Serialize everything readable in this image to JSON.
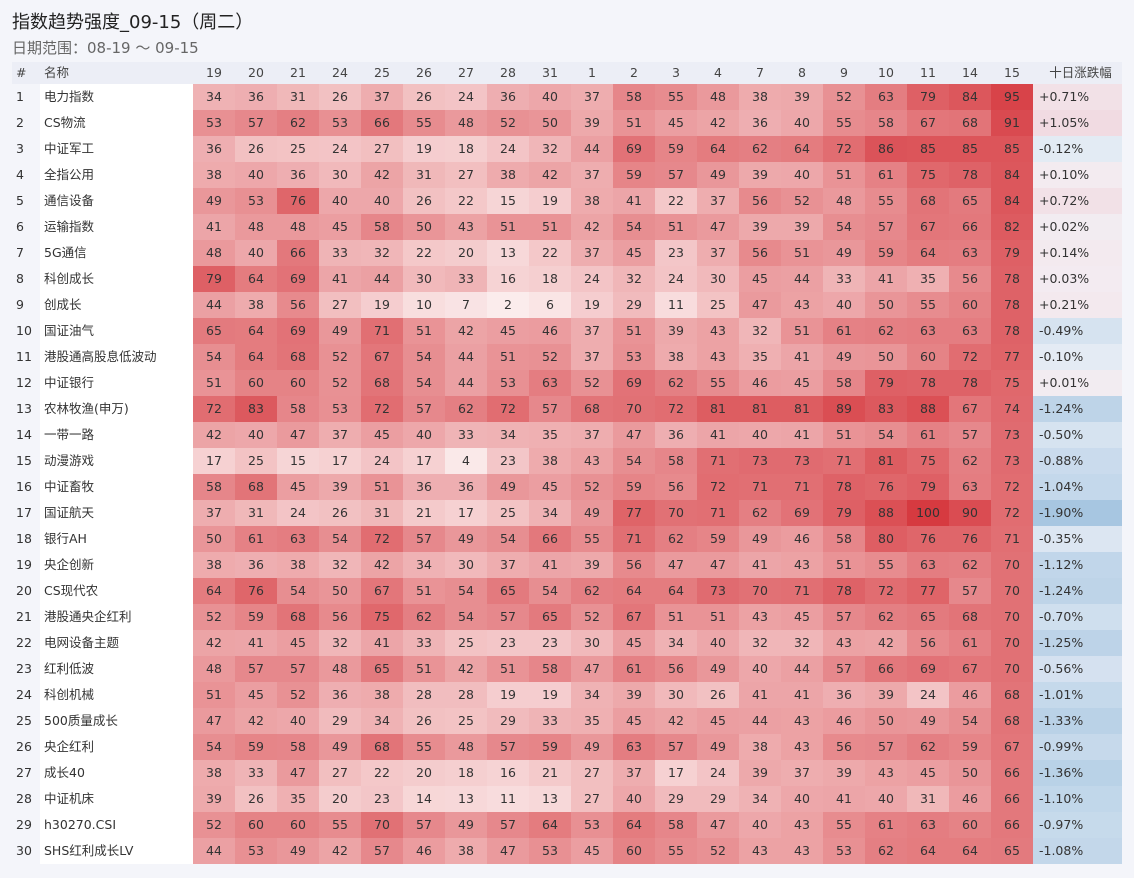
{
  "header": {
    "title": "指数趋势强度_09-15（周二）",
    "date_range": "日期范围：08-19 ～ 09-15"
  },
  "table": {
    "columns": [
      "#",
      "名称",
      "19",
      "20",
      "21",
      "24",
      "25",
      "26",
      "27",
      "28",
      "31",
      "1",
      "2",
      "3",
      "4",
      "7",
      "8",
      "9",
      "10",
      "11",
      "14",
      "15",
      "十日涨跌幅"
    ],
    "rows": [
      [
        1,
        "电力指数",
        34,
        36,
        31,
        26,
        37,
        26,
        24,
        36,
        40,
        37,
        58,
        55,
        48,
        38,
        39,
        52,
        63,
        79,
        84,
        95,
        "+0.71%"
      ],
      [
        2,
        "CS物流",
        53,
        57,
        62,
        53,
        66,
        55,
        48,
        52,
        50,
        39,
        51,
        45,
        42,
        36,
        40,
        55,
        58,
        67,
        68,
        91,
        "+1.05%"
      ],
      [
        3,
        "中证军工",
        36,
        26,
        25,
        24,
        27,
        19,
        18,
        24,
        32,
        44,
        69,
        59,
        64,
        62,
        64,
        72,
        86,
        85,
        85,
        85,
        "-0.12%"
      ],
      [
        4,
        "全指公用",
        38,
        40,
        36,
        30,
        42,
        31,
        27,
        38,
        42,
        37,
        59,
        57,
        49,
        39,
        40,
        51,
        61,
        75,
        78,
        84,
        "+0.10%"
      ],
      [
        5,
        "通信设备",
        49,
        53,
        76,
        40,
        40,
        26,
        22,
        15,
        19,
        38,
        41,
        22,
        37,
        56,
        52,
        48,
        55,
        68,
        65,
        84,
        "+0.72%"
      ],
      [
        6,
        "运输指数",
        41,
        48,
        48,
        45,
        58,
        50,
        43,
        51,
        51,
        42,
        54,
        51,
        47,
        39,
        39,
        54,
        57,
        67,
        66,
        82,
        "+0.02%"
      ],
      [
        7,
        "5G通信",
        48,
        40,
        66,
        33,
        32,
        22,
        20,
        13,
        22,
        37,
        45,
        23,
        37,
        56,
        51,
        49,
        59,
        64,
        63,
        79,
        "+0.14%"
      ],
      [
        8,
        "科创成长",
        79,
        64,
        69,
        41,
        44,
        30,
        33,
        16,
        18,
        24,
        32,
        24,
        30,
        45,
        44,
        33,
        41,
        35,
        56,
        78,
        "+0.03%"
      ],
      [
        9,
        "创成长",
        44,
        38,
        56,
        27,
        19,
        10,
        7,
        2,
        6,
        19,
        29,
        11,
        25,
        47,
        43,
        40,
        50,
        55,
        60,
        78,
        "+0.21%"
      ],
      [
        10,
        "国证油气",
        65,
        64,
        69,
        49,
        71,
        51,
        42,
        45,
        46,
        37,
        51,
        39,
        43,
        32,
        51,
        61,
        62,
        63,
        63,
        78,
        "-0.49%"
      ],
      [
        11,
        "港股通高股息低波动",
        54,
        64,
        68,
        52,
        67,
        54,
        44,
        51,
        52,
        37,
        53,
        38,
        43,
        35,
        41,
        49,
        50,
        60,
        72,
        77,
        "-0.10%"
      ],
      [
        12,
        "中证银行",
        51,
        60,
        60,
        52,
        68,
        54,
        44,
        53,
        63,
        52,
        69,
        62,
        55,
        46,
        45,
        58,
        79,
        78,
        78,
        75,
        "+0.01%"
      ],
      [
        13,
        "农林牧渔(申万)",
        72,
        83,
        58,
        53,
        72,
        57,
        62,
        72,
        57,
        68,
        70,
        72,
        81,
        81,
        81,
        89,
        83,
        88,
        67,
        74,
        "-1.24%"
      ],
      [
        14,
        "一带一路",
        42,
        40,
        47,
        37,
        45,
        40,
        33,
        34,
        35,
        37,
        47,
        36,
        41,
        40,
        41,
        51,
        54,
        61,
        57,
        73,
        "-0.50%"
      ],
      [
        15,
        "动漫游戏",
        17,
        25,
        15,
        17,
        24,
        17,
        4,
        23,
        38,
        43,
        54,
        58,
        71,
        73,
        73,
        71,
        81,
        75,
        62,
        73,
        "-0.88%"
      ],
      [
        16,
        "中证畜牧",
        58,
        68,
        45,
        39,
        51,
        36,
        36,
        49,
        45,
        52,
        59,
        56,
        72,
        71,
        71,
        78,
        76,
        79,
        63,
        72,
        "-1.04%"
      ],
      [
        17,
        "国证航天",
        37,
        31,
        24,
        26,
        31,
        21,
        17,
        25,
        34,
        49,
        77,
        70,
        71,
        62,
        69,
        79,
        88,
        100,
        90,
        72,
        "-1.90%"
      ],
      [
        18,
        "银行AH",
        50,
        61,
        63,
        54,
        72,
        57,
        49,
        54,
        66,
        55,
        71,
        62,
        59,
        49,
        46,
        58,
        80,
        76,
        76,
        71,
        "-0.35%"
      ],
      [
        19,
        "央企创新",
        38,
        36,
        38,
        32,
        42,
        34,
        30,
        37,
        41,
        39,
        56,
        47,
        47,
        41,
        43,
        51,
        55,
        63,
        62,
        70,
        "-1.12%"
      ],
      [
        20,
        "CS现代农",
        64,
        76,
        54,
        50,
        67,
        51,
        54,
        65,
        54,
        62,
        64,
        64,
        73,
        70,
        71,
        78,
        72,
        77,
        57,
        70,
        "-1.24%"
      ],
      [
        21,
        "港股通央企红利",
        52,
        59,
        68,
        56,
        75,
        62,
        54,
        57,
        65,
        52,
        67,
        51,
        51,
        43,
        45,
        57,
        62,
        65,
        68,
        70,
        "-0.70%"
      ],
      [
        22,
        "电网设备主题",
        42,
        41,
        45,
        32,
        41,
        33,
        25,
        23,
        23,
        30,
        45,
        34,
        40,
        32,
        32,
        43,
        42,
        56,
        61,
        70,
        "-1.25%"
      ],
      [
        23,
        "红利低波",
        48,
        57,
        57,
        48,
        65,
        51,
        42,
        51,
        58,
        47,
        61,
        56,
        49,
        40,
        44,
        57,
        66,
        69,
        67,
        70,
        "-0.56%"
      ],
      [
        24,
        "科创机械",
        51,
        45,
        52,
        36,
        38,
        28,
        28,
        19,
        19,
        34,
        39,
        30,
        26,
        41,
        41,
        36,
        39,
        24,
        46,
        68,
        "-1.01%"
      ],
      [
        25,
        "500质量成长",
        47,
        42,
        40,
        29,
        34,
        26,
        25,
        29,
        33,
        35,
        45,
        42,
        45,
        44,
        43,
        46,
        50,
        49,
        54,
        68,
        "-1.33%"
      ],
      [
        26,
        "央企红利",
        54,
        59,
        58,
        49,
        68,
        55,
        48,
        57,
        59,
        49,
        63,
        57,
        49,
        38,
        43,
        56,
        57,
        62,
        59,
        67,
        "-0.99%"
      ],
      [
        27,
        "成长40",
        38,
        33,
        47,
        27,
        22,
        20,
        18,
        16,
        21,
        27,
        37,
        17,
        24,
        39,
        37,
        39,
        43,
        45,
        50,
        66,
        "-1.36%"
      ],
      [
        28,
        "中证机床",
        39,
        26,
        35,
        20,
        23,
        14,
        13,
        11,
        13,
        27,
        40,
        29,
        29,
        34,
        40,
        41,
        40,
        31,
        46,
        66,
        "-1.10%"
      ],
      [
        29,
        "h30270.CSI",
        52,
        60,
        60,
        55,
        70,
        57,
        49,
        57,
        64,
        53,
        64,
        58,
        47,
        40,
        43,
        55,
        61,
        63,
        60,
        66,
        "-0.97%"
      ],
      [
        30,
        "SHS红利成长LV",
        44,
        53,
        49,
        42,
        57,
        46,
        38,
        47,
        53,
        45,
        60,
        55,
        52,
        43,
        43,
        53,
        62,
        64,
        64,
        65,
        "-1.08%"
      ]
    ]
  }
}
